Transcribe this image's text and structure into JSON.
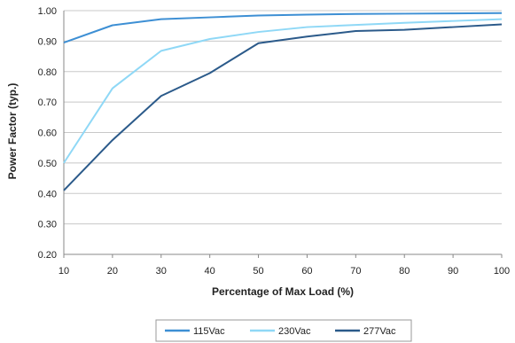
{
  "chart_data": {
    "type": "line",
    "title": "",
    "xlabel": "Percentage of Max Load (%)",
    "ylabel": "Power Factor (typ.)",
    "x": [
      10,
      20,
      30,
      40,
      50,
      60,
      70,
      80,
      90,
      100
    ],
    "x_tick_labels": [
      "10",
      "20",
      "30",
      "40",
      "50",
      "60",
      "70",
      "80",
      "90",
      "100"
    ],
    "y_tick_labels": [
      "0.20",
      "0.30",
      "0.40",
      "0.50",
      "0.60",
      "0.70",
      "0.80",
      "0.90",
      "1.00"
    ],
    "xlim": [
      10,
      100
    ],
    "ylim": [
      0.2,
      1.0
    ],
    "grid": "horizontal",
    "legend_position": "bottom",
    "series": [
      {
        "name": "115Vac",
        "color": "#3d8fd4",
        "values": [
          0.895,
          0.952,
          0.972,
          0.978,
          0.984,
          0.987,
          0.989,
          0.99,
          0.991,
          0.992
        ]
      },
      {
        "name": "230Vac",
        "color": "#8fd8f6",
        "values": [
          0.5,
          0.745,
          0.868,
          0.907,
          0.93,
          0.946,
          0.953,
          0.96,
          0.966,
          0.972
        ]
      },
      {
        "name": "277Vac",
        "color": "#2b5a8a",
        "values": [
          0.41,
          0.575,
          0.72,
          0.795,
          0.893,
          0.915,
          0.933,
          0.937,
          0.946,
          0.955
        ]
      }
    ]
  }
}
